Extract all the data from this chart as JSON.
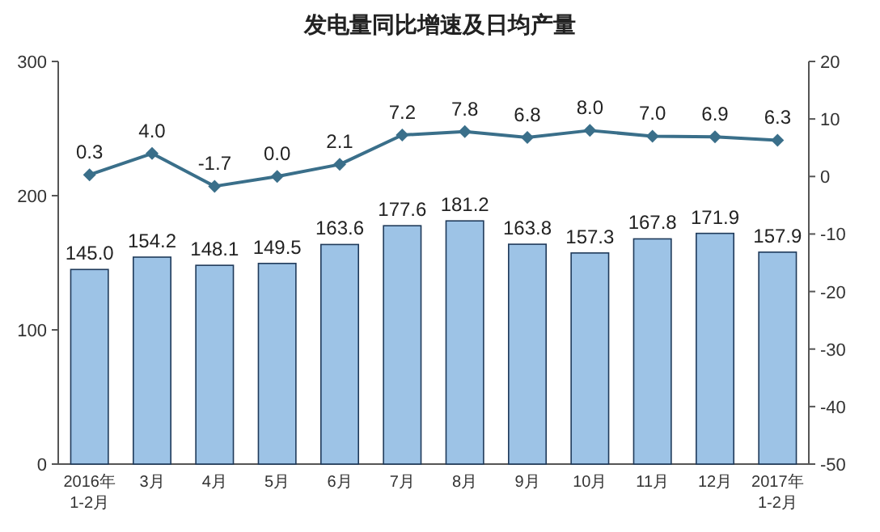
{
  "chart_data": {
    "type": "bar",
    "title": "发电量同比增速及日均产量",
    "categories": [
      "2016年\n1-2月",
      "3月",
      "4月",
      "5月",
      "6月",
      "7月",
      "8月",
      "9月",
      "10月",
      "11月",
      "12月",
      "2017年\n1-2月"
    ],
    "series": [
      {
        "color": "#9dc3e6",
        "values": [
          145.0,
          154.2,
          148.1,
          149.5,
          163.6,
          177.6,
          181.2,
          163.8,
          157.3,
          167.8,
          171.9,
          157.9
        ],
        "value_labels": [
          "145.0",
          "154.2",
          "148.1",
          "149.5",
          "163.6",
          "177.6",
          "181.2",
          "163.8",
          "157.3",
          "167.8",
          "171.9",
          "157.9"
        ]
      },
      {
        "type": "line",
        "axis": "y2",
        "color": "#3a6f8a",
        "marker": "diamond",
        "values": [
          0.3,
          4.0,
          -1.7,
          0.0,
          2.1,
          7.2,
          7.8,
          6.8,
          8.0,
          7.0,
          6.9,
          6.3
        ],
        "value_labels": [
          "0.3",
          "4.0",
          "-1.7",
          "0.0",
          "2.1",
          "7.2",
          "7.8",
          "6.8",
          "8.0",
          "7.0",
          "6.9",
          "6.3"
        ]
      }
    ],
    "ylim": [
      0,
      300
    ],
    "yticks": [
      0,
      100,
      200,
      300
    ],
    "y2lim": [
      -50,
      20
    ],
    "y2ticks": [
      -50,
      -40,
      -30,
      -20,
      -10,
      0,
      10,
      20
    ]
  }
}
